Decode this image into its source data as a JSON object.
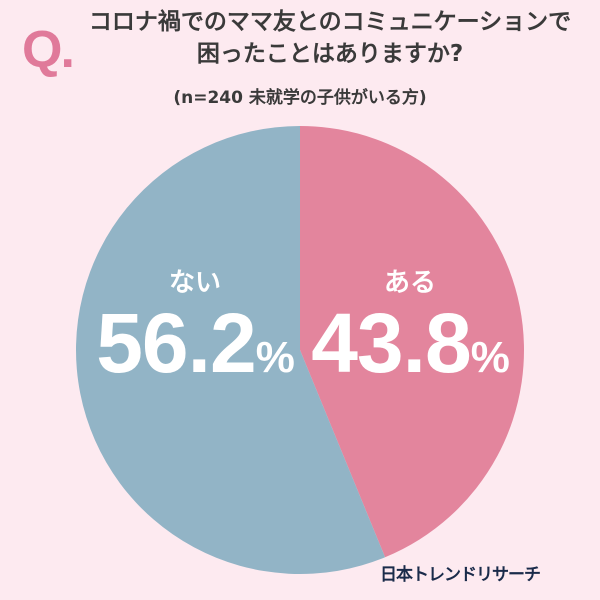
{
  "header": {
    "q_mark": "Q.",
    "title_line1": "コロナ禍でのママ友とのコミュニケーションで",
    "title_line2": "困ったことはありますか?",
    "subtitle": "(n=240 未就学の子供がいる方)"
  },
  "labels": {
    "nai": {
      "category": "ない",
      "value": "56.2",
      "unit": "%"
    },
    "aru": {
      "category": "ある",
      "value": "43.8",
      "unit": "%"
    }
  },
  "source": "日本トレンドリサーチ",
  "colors": {
    "background": "#fdeaf0",
    "aru": "#e3859d",
    "nai": "#92b4c6",
    "accent": "#e07a9a",
    "source_text": "#1a2b4a"
  },
  "chart_data": {
    "type": "pie",
    "title": "コロナ禍でのママ友とのコミュニケーションで困ったことはありますか?",
    "subtitle": "(n=240 未就学の子供がいる方)",
    "categories": [
      "ある",
      "ない"
    ],
    "values": [
      43.8,
      56.2
    ],
    "unit": "%",
    "colors": [
      "#e3859d",
      "#92b4c6"
    ],
    "start_angle": "12 o'clock, clockwise",
    "n": 240,
    "legend": "none (labels inside slices)",
    "source": "日本トレンドリサーチ"
  }
}
